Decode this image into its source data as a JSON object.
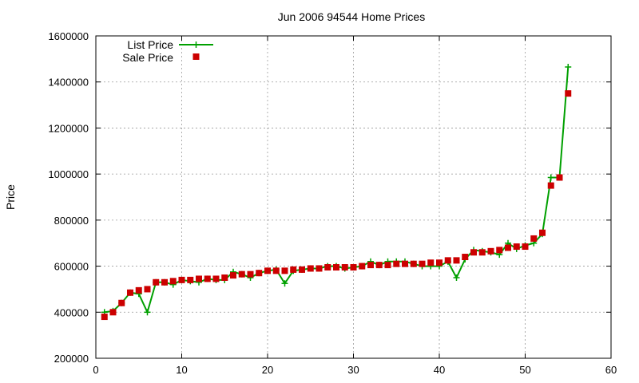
{
  "chart_data": {
    "type": "line",
    "title": "Jun 2006 94544 Home Prices",
    "xlabel": "",
    "ylabel": "Price",
    "xlim": [
      0,
      60
    ],
    "ylim": [
      200000,
      1600000
    ],
    "xticks": [
      0,
      10,
      20,
      30,
      40,
      50,
      60
    ],
    "yticks": [
      200000,
      400000,
      600000,
      800000,
      1000000,
      1200000,
      1400000,
      1600000
    ],
    "grid": true,
    "legend_position": "top-left",
    "series": [
      {
        "name": "List Price",
        "style": "line+cross",
        "color": "#00a000",
        "x": [
          1,
          2,
          3,
          4,
          5,
          6,
          7,
          8,
          9,
          10,
          11,
          12,
          13,
          14,
          15,
          16,
          17,
          18,
          19,
          20,
          21,
          22,
          23,
          24,
          25,
          26,
          27,
          28,
          29,
          30,
          31,
          32,
          33,
          34,
          35,
          36,
          37,
          38,
          39,
          40,
          41,
          42,
          43,
          44,
          45,
          46,
          47,
          48,
          49,
          50,
          51,
          52,
          53,
          54,
          55
        ],
        "values": [
          400000,
          405000,
          440000,
          485000,
          480000,
          400000,
          530000,
          530000,
          520000,
          540000,
          535000,
          530000,
          545000,
          540000,
          540000,
          575000,
          565000,
          550000,
          570000,
          580000,
          585000,
          525000,
          580000,
          585000,
          590000,
          590000,
          600000,
          600000,
          590000,
          595000,
          600000,
          620000,
          605000,
          620000,
          620000,
          620000,
          610000,
          600000,
          600000,
          600000,
          620000,
          550000,
          630000,
          670000,
          665000,
          660000,
          650000,
          700000,
          675000,
          690000,
          700000,
          740000,
          985000,
          985000,
          1465000
        ]
      },
      {
        "name": "Sale Price",
        "style": "square",
        "color": "#cc0000",
        "x": [
          1,
          2,
          3,
          4,
          5,
          6,
          7,
          8,
          9,
          10,
          11,
          12,
          13,
          14,
          15,
          16,
          17,
          18,
          19,
          20,
          21,
          22,
          23,
          24,
          25,
          26,
          27,
          28,
          29,
          30,
          31,
          32,
          33,
          34,
          35,
          36,
          37,
          38,
          39,
          40,
          41,
          42,
          43,
          44,
          45,
          46,
          47,
          48,
          49,
          50,
          51,
          52,
          53,
          54,
          55
        ],
        "values": [
          380000,
          400000,
          440000,
          485000,
          495000,
          500000,
          530000,
          530000,
          535000,
          540000,
          540000,
          545000,
          545000,
          545000,
          550000,
          560000,
          565000,
          565000,
          570000,
          580000,
          580000,
          580000,
          585000,
          585000,
          590000,
          590000,
          595000,
          595000,
          595000,
          595000,
          600000,
          605000,
          605000,
          605000,
          610000,
          610000,
          610000,
          610000,
          615000,
          615000,
          625000,
          625000,
          640000,
          660000,
          660000,
          665000,
          670000,
          680000,
          685000,
          685000,
          720000,
          745000,
          950000,
          985000,
          1350000
        ]
      }
    ]
  }
}
